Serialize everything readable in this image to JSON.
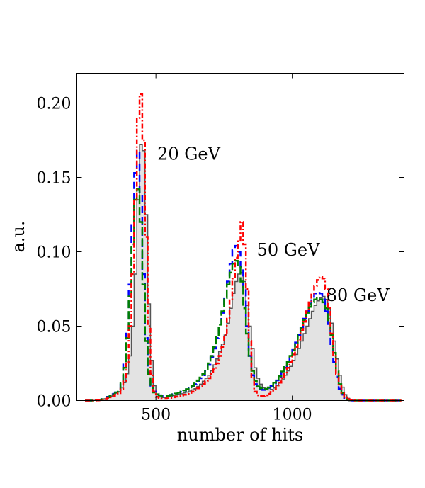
{
  "chart_data": {
    "type": "histogram",
    "title": "",
    "xlabel": "number of hits",
    "ylabel": "a.u.",
    "xlim": [
      210,
      1410
    ],
    "ylim": [
      0,
      0.22
    ],
    "xticks": [
      500,
      1000
    ],
    "xtick_labels": [
      "500",
      "1000"
    ],
    "yticks": [
      0.0,
      0.05,
      0.1,
      0.15,
      0.2
    ],
    "ytick_labels": [
      "0.00",
      "0.05",
      "0.10",
      "0.15",
      "0.20"
    ],
    "grid": false,
    "legend": "none",
    "bin_width": 10,
    "bin_edges": [
      240,
      250,
      260,
      270,
      280,
      290,
      300,
      310,
      320,
      330,
      340,
      350,
      360,
      370,
      380,
      390,
      400,
      410,
      420,
      430,
      440,
      450,
      460,
      470,
      480,
      490,
      500,
      510,
      520,
      530,
      540,
      550,
      560,
      570,
      580,
      590,
      600,
      610,
      620,
      630,
      640,
      650,
      660,
      670,
      680,
      690,
      700,
      710,
      720,
      730,
      740,
      750,
      760,
      770,
      780,
      790,
      800,
      810,
      820,
      830,
      840,
      850,
      860,
      870,
      880,
      890,
      900,
      910,
      920,
      930,
      940,
      950,
      960,
      970,
      980,
      990,
      1000,
      1010,
      1020,
      1030,
      1040,
      1050,
      1060,
      1070,
      1080,
      1090,
      1100,
      1110,
      1120,
      1130,
      1140,
      1150,
      1160,
      1170,
      1180,
      1190,
      1200,
      1210,
      1220,
      1230,
      1240,
      1250,
      1260,
      1270,
      1280,
      1290,
      1300,
      1310,
      1320,
      1330,
      1340,
      1350,
      1360,
      1370,
      1380,
      1390,
      1400
    ],
    "series": [
      {
        "name": "reference (filled)",
        "color": "#555555",
        "fill": "#e3e3e3",
        "dash": "",
        "values": [
          0.0,
          0.0,
          0.0,
          0.0001,
          0.0002,
          0.0004,
          0.0008,
          0.0012,
          0.002,
          0.003,
          0.0045,
          0.005,
          0.006,
          0.009,
          0.012,
          0.018,
          0.03,
          0.05,
          0.085,
          0.135,
          0.172,
          0.168,
          0.125,
          0.065,
          0.027,
          0.01,
          0.004,
          0.0024,
          0.002,
          0.002,
          0.0025,
          0.003,
          0.0033,
          0.0037,
          0.0042,
          0.0046,
          0.0051,
          0.0057,
          0.0064,
          0.0072,
          0.008,
          0.0095,
          0.011,
          0.013,
          0.015,
          0.017,
          0.02,
          0.024,
          0.028,
          0.033,
          0.038,
          0.044,
          0.052,
          0.062,
          0.072,
          0.08,
          0.085,
          0.086,
          0.08,
          0.064,
          0.05,
          0.035,
          0.022,
          0.015,
          0.011,
          0.0085,
          0.0075,
          0.0072,
          0.0075,
          0.0085,
          0.01,
          0.012,
          0.014,
          0.017,
          0.02,
          0.023,
          0.027,
          0.031,
          0.035,
          0.04,
          0.045,
          0.05,
          0.055,
          0.06,
          0.064,
          0.067,
          0.069,
          0.07,
          0.068,
          0.062,
          0.052,
          0.04,
          0.028,
          0.017,
          0.009,
          0.004,
          0.0015,
          0.0005,
          0.0001,
          0.0,
          0.0,
          0.0,
          0.0,
          0.0,
          0.0,
          0.0,
          0.0,
          0.0,
          0.0,
          0.0,
          0.0,
          0.0,
          0.0,
          0.0,
          0.0,
          0.0
        ]
      },
      {
        "name": "blue dashed",
        "color": "#0000ff",
        "dash": "10,6",
        "values": [
          0.0,
          0.0,
          0.0,
          0.0001,
          0.0003,
          0.0005,
          0.001,
          0.0015,
          0.0025,
          0.0035,
          0.0045,
          0.0055,
          0.007,
          0.012,
          0.025,
          0.045,
          0.078,
          0.118,
          0.153,
          0.168,
          0.14,
          0.085,
          0.042,
          0.019,
          0.01,
          0.006,
          0.0045,
          0.0035,
          0.003,
          0.003,
          0.0034,
          0.0038,
          0.0042,
          0.0047,
          0.0053,
          0.0059,
          0.0066,
          0.0075,
          0.0085,
          0.0095,
          0.011,
          0.013,
          0.015,
          0.017,
          0.02,
          0.024,
          0.029,
          0.035,
          0.042,
          0.05,
          0.059,
          0.069,
          0.08,
          0.092,
          0.101,
          0.104,
          0.1,
          0.09,
          0.075,
          0.05,
          0.03,
          0.017,
          0.011,
          0.0085,
          0.0075,
          0.0072,
          0.0075,
          0.0085,
          0.0098,
          0.0115,
          0.0135,
          0.016,
          0.019,
          0.022,
          0.026,
          0.03,
          0.034,
          0.039,
          0.044,
          0.049,
          0.055,
          0.06,
          0.065,
          0.069,
          0.072,
          0.073,
          0.072,
          0.068,
          0.06,
          0.05,
          0.038,
          0.026,
          0.016,
          0.008,
          0.004,
          0.0015,
          0.0005,
          0.0001,
          0.0,
          0.0,
          0.0,
          0.0,
          0.0,
          0.0,
          0.0,
          0.0,
          0.0,
          0.0,
          0.0,
          0.0,
          0.0,
          0.0,
          0.0,
          0.0,
          0.0,
          0.0
        ]
      },
      {
        "name": "green dashed",
        "color": "#008000",
        "dash": "12,4",
        "values": [
          0.0,
          0.0,
          0.0,
          0.0001,
          0.0003,
          0.0005,
          0.0009,
          0.0014,
          0.0022,
          0.0032,
          0.0042,
          0.0055,
          0.007,
          0.012,
          0.022,
          0.042,
          0.07,
          0.105,
          0.135,
          0.142,
          0.12,
          0.078,
          0.04,
          0.018,
          0.009,
          0.0055,
          0.0042,
          0.0034,
          0.003,
          0.003,
          0.0033,
          0.0037,
          0.0042,
          0.0047,
          0.0053,
          0.006,
          0.0068,
          0.0077,
          0.0088,
          0.01,
          0.0115,
          0.0135,
          0.0155,
          0.018,
          0.021,
          0.025,
          0.03,
          0.036,
          0.043,
          0.051,
          0.06,
          0.069,
          0.078,
          0.086,
          0.092,
          0.094,
          0.09,
          0.08,
          0.062,
          0.045,
          0.03,
          0.02,
          0.013,
          0.0095,
          0.0082,
          0.0076,
          0.0078,
          0.0088,
          0.01,
          0.012,
          0.014,
          0.0165,
          0.0195,
          0.0225,
          0.026,
          0.03,
          0.034,
          0.039,
          0.044,
          0.049,
          0.054,
          0.059,
          0.063,
          0.066,
          0.068,
          0.069,
          0.068,
          0.066,
          0.062,
          0.054,
          0.044,
          0.032,
          0.02,
          0.011,
          0.005,
          0.002,
          0.0007,
          0.0002,
          0.0,
          0.0,
          0.0,
          0.0,
          0.0,
          0.0,
          0.0,
          0.0,
          0.0,
          0.0,
          0.0,
          0.0,
          0.0,
          0.0,
          0.0,
          0.0,
          0.0,
          0.0
        ]
      },
      {
        "name": "red dash-dot",
        "color": "#ff0000",
        "dash": "7,3,2,3",
        "values": [
          0.0,
          0.0,
          0.0,
          0.0,
          0.0001,
          0.0002,
          0.0005,
          0.0009,
          0.0015,
          0.0022,
          0.003,
          0.004,
          0.005,
          0.008,
          0.013,
          0.025,
          0.05,
          0.085,
          0.135,
          0.19,
          0.206,
          0.175,
          0.11,
          0.05,
          0.018,
          0.006,
          0.0025,
          0.0015,
          0.0012,
          0.0012,
          0.0015,
          0.0018,
          0.0022,
          0.0026,
          0.003,
          0.0034,
          0.0039,
          0.0045,
          0.0052,
          0.006,
          0.007,
          0.0082,
          0.0096,
          0.0112,
          0.013,
          0.015,
          0.018,
          0.021,
          0.025,
          0.03,
          0.036,
          0.044,
          0.055,
          0.068,
          0.082,
          0.096,
          0.107,
          0.12,
          0.105,
          0.075,
          0.04,
          0.015,
          0.006,
          0.0035,
          0.003,
          0.003,
          0.0035,
          0.0045,
          0.0058,
          0.0075,
          0.0095,
          0.012,
          0.015,
          0.018,
          0.022,
          0.026,
          0.031,
          0.036,
          0.041,
          0.047,
          0.053,
          0.06,
          0.066,
          0.072,
          0.077,
          0.081,
          0.083,
          0.082,
          0.075,
          0.062,
          0.045,
          0.03,
          0.018,
          0.01,
          0.005,
          0.0022,
          0.0009,
          0.0003,
          0.0001,
          0.0,
          0.0,
          0.0,
          0.0,
          0.0,
          0.0,
          0.0,
          0.0,
          0.0,
          0.0,
          0.0,
          0.0,
          0.0,
          0.0,
          0.0,
          0.0,
          0.0
        ]
      }
    ],
    "annotations": [
      {
        "text": "20 GeV",
        "x": 505,
        "y": 0.162
      },
      {
        "text": "50 GeV",
        "x": 870,
        "y": 0.0975
      },
      {
        "text": "80 GeV",
        "x": 1125,
        "y": 0.067
      }
    ]
  }
}
